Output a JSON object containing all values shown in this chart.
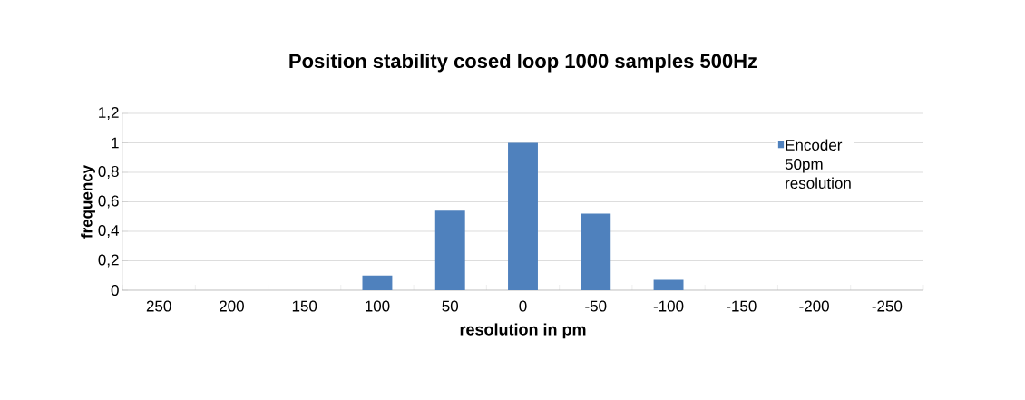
{
  "chart_data": {
    "type": "bar",
    "title": "Position stability cosed loop 1000 samples 500Hz",
    "xlabel": "resolution in pm",
    "ylabel": "frequency",
    "categories": [
      "250",
      "200",
      "150",
      "100",
      "50",
      "0",
      "-50",
      "-100",
      "-150",
      "-200",
      "-250"
    ],
    "series": [
      {
        "name": "Encoder 50pm resolution",
        "color": "#4f81bd",
        "values": [
          0,
          0,
          0,
          0.1,
          0.54,
          1,
          0.52,
          0.07,
          0,
          0,
          0
        ]
      }
    ],
    "ylim": [
      0,
      1.2
    ],
    "yticks": [
      0,
      {
        "value": 0.2,
        "label": "0,2"
      },
      {
        "value": 0.4,
        "label": "0,4"
      },
      {
        "value": 0.6,
        "label": "0,6"
      },
      {
        "value": 0.8,
        "label": "0,8"
      },
      1,
      {
        "value": 1.2,
        "label": "1,2"
      }
    ],
    "grid": "y",
    "legend": "top right"
  }
}
